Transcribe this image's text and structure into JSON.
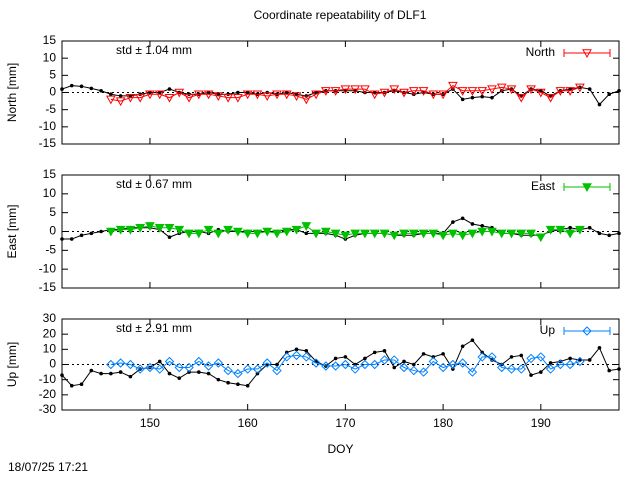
{
  "title": "Coordinate repeatability of DLF1",
  "timestamp": "18/07/25 17:21",
  "chart_data": [
    {
      "type": "line",
      "ylabel": "North [mm]",
      "annotation": "std ± 1.04 mm",
      "xlim": [
        141,
        198
      ],
      "xticks": [
        150,
        160,
        170,
        180,
        190
      ],
      "xtick_labels": false,
      "ylim": [
        -15,
        15
      ],
      "yticks": [
        -15,
        -10,
        -5,
        0,
        5,
        10,
        15
      ],
      "zero_line": true,
      "x": [
        141,
        142,
        143,
        144,
        145,
        146,
        147,
        148,
        149,
        150,
        151,
        152,
        153,
        154,
        155,
        156,
        157,
        158,
        159,
        160,
        161,
        162,
        163,
        164,
        165,
        166,
        167,
        168,
        169,
        170,
        171,
        172,
        173,
        174,
        175,
        176,
        177,
        178,
        179,
        180,
        181,
        182,
        183,
        184,
        185,
        186,
        187,
        188,
        189,
        190,
        191,
        192,
        193,
        194,
        195,
        196,
        197,
        198
      ],
      "series": [
        {
          "color": "#000000",
          "marker": "dot",
          "values": [
            1,
            2,
            1.8,
            1.2,
            0.5,
            -0.5,
            -1,
            -1,
            -0.5,
            0,
            0,
            1,
            0,
            -0.5,
            -0.5,
            0,
            -0.5,
            -0.5,
            0,
            0,
            -0.5,
            0,
            -0.5,
            0,
            -0.5,
            -1,
            0,
            0.5,
            0.5,
            0.5,
            0.5,
            0,
            0,
            0,
            0.5,
            0,
            -0.5,
            0,
            -0.5,
            -0.5,
            1,
            -2,
            -1.5,
            -1.2,
            -1.5,
            0.5,
            1,
            -1,
            1,
            0.5,
            -1,
            0.5,
            1,
            1.5,
            1,
            -3.5,
            -0.5,
            0.5
          ]
        },
        {
          "name": "North",
          "color": "#ff0000",
          "marker": "triangle-open",
          "values": [
            null,
            null,
            null,
            null,
            null,
            -2,
            -2.5,
            -1.5,
            -1.5,
            -0.5,
            -0.5,
            -1.5,
            0,
            -1.5,
            -0.5,
            -0.5,
            -1,
            -1.5,
            -1.5,
            -0.5,
            -0.5,
            -1,
            -0.5,
            -0.5,
            -1,
            -2,
            -0.5,
            0.5,
            0.5,
            1,
            1,
            1,
            -0.5,
            0,
            1,
            0,
            0.5,
            0.5,
            -0.5,
            -0.5,
            2,
            0.5,
            0.5,
            0.5,
            1,
            1.5,
            1,
            -1.5,
            1,
            0,
            -1.5,
            0.5,
            0.5,
            1.5,
            null,
            null,
            null,
            null
          ]
        }
      ]
    },
    {
      "type": "line",
      "ylabel": "East [mm]",
      "annotation": "std ± 0.67 mm",
      "xlim": [
        141,
        198
      ],
      "xticks": [
        150,
        160,
        170,
        180,
        190
      ],
      "xtick_labels": false,
      "ylim": [
        -15,
        15
      ],
      "yticks": [
        -15,
        -10,
        -5,
        0,
        5,
        10,
        15
      ],
      "zero_line": true,
      "x": [
        141,
        142,
        143,
        144,
        145,
        146,
        147,
        148,
        149,
        150,
        151,
        152,
        153,
        154,
        155,
        156,
        157,
        158,
        159,
        160,
        161,
        162,
        163,
        164,
        165,
        166,
        167,
        168,
        169,
        170,
        171,
        172,
        173,
        174,
        175,
        176,
        177,
        178,
        179,
        180,
        181,
        182,
        183,
        184,
        185,
        186,
        187,
        188,
        189,
        190,
        191,
        192,
        193,
        194,
        195,
        196,
        197,
        198
      ],
      "series": [
        {
          "color": "#000000",
          "marker": "dot",
          "values": [
            -2,
            -2,
            -1,
            -0.5,
            0,
            0.5,
            0.5,
            1,
            1,
            1,
            0.5,
            -1.5,
            -0.5,
            0,
            0,
            -0.5,
            0.5,
            0,
            0,
            0,
            0,
            0,
            0,
            0.5,
            0.5,
            -0.5,
            -0.5,
            -0.5,
            -1,
            -2,
            -1,
            -0.5,
            -0.5,
            -0.5,
            -1,
            -1,
            -1,
            -0.5,
            -0.5,
            -0.5,
            2.5,
            3.5,
            2,
            1.5,
            1,
            -0.5,
            -0.5,
            -1,
            -1,
            -1,
            0,
            0.5,
            1,
            0.5,
            1,
            -0.5,
            -1,
            -0.5
          ]
        },
        {
          "name": "East",
          "color": "#00c000",
          "marker": "triangle-filled",
          "values": [
            null,
            null,
            null,
            null,
            null,
            0,
            0.5,
            0.5,
            1,
            1.5,
            1,
            1,
            0.5,
            -0.5,
            -0.5,
            0.5,
            -0.5,
            0.5,
            0,
            -0.5,
            -0.5,
            0,
            -0.5,
            0,
            0.5,
            1.5,
            -0.5,
            0,
            -0.5,
            -1,
            -0.5,
            -0.5,
            -0.5,
            -0.5,
            -1,
            -0.5,
            -0.5,
            -0.5,
            -0.5,
            -1,
            -0.5,
            -1,
            -0.5,
            0,
            0,
            -0.5,
            -0.5,
            -0.5,
            -0.5,
            -1.5,
            0.5,
            0.5,
            -0.5,
            0.5,
            null,
            null,
            null,
            null
          ]
        }
      ]
    },
    {
      "type": "line",
      "ylabel": "Up [mm]",
      "xlabel": "DOY",
      "annotation": "std ± 2.91 mm",
      "xlim": [
        141,
        198
      ],
      "xticks": [
        150,
        160,
        170,
        180,
        190
      ],
      "xtick_labels": true,
      "ylim": [
        -30,
        30
      ],
      "yticks": [
        -30,
        -20,
        -10,
        0,
        10,
        20,
        30
      ],
      "zero_line": true,
      "x": [
        141,
        142,
        143,
        144,
        145,
        146,
        147,
        148,
        149,
        150,
        151,
        152,
        153,
        154,
        155,
        156,
        157,
        158,
        159,
        160,
        161,
        162,
        163,
        164,
        165,
        166,
        167,
        168,
        169,
        170,
        171,
        172,
        173,
        174,
        175,
        176,
        177,
        178,
        179,
        180,
        181,
        182,
        183,
        184,
        185,
        186,
        187,
        188,
        189,
        190,
        191,
        192,
        193,
        194,
        195,
        196,
        197,
        198
      ],
      "series": [
        {
          "color": "#000000",
          "marker": "dot",
          "values": [
            -7,
            -14,
            -13,
            -4,
            -6,
            -6,
            -5,
            -8,
            -3,
            -2,
            2,
            -6,
            -9,
            -5,
            -5,
            -6,
            -10,
            -12,
            -13,
            -14,
            -6,
            0,
            0,
            8,
            10,
            9,
            2,
            -1,
            4,
            5,
            0,
            4,
            8,
            9,
            -2,
            2,
            0,
            7,
            5,
            7,
            -3,
            12,
            16,
            8,
            3,
            0,
            5,
            6,
            -7,
            -5,
            1,
            2,
            4,
            3,
            3,
            11,
            -4,
            -3
          ]
        },
        {
          "name": "Up",
          "color": "#0080ff",
          "marker": "diamond-open",
          "values": [
            null,
            null,
            null,
            null,
            null,
            0,
            1,
            0,
            -3,
            -2,
            -3,
            2,
            -2,
            -2,
            2,
            -1,
            1,
            -4,
            -6,
            -3,
            -3,
            1,
            -4,
            5,
            6,
            5,
            1,
            -1,
            -1,
            0,
            -3,
            0,
            0,
            3,
            3,
            -2,
            -4,
            -5,
            2,
            -2,
            0,
            1,
            -5,
            5,
            5,
            -2,
            -3,
            -3,
            4,
            5,
            -3,
            0,
            0,
            2,
            null,
            null,
            null,
            null
          ]
        }
      ]
    }
  ]
}
